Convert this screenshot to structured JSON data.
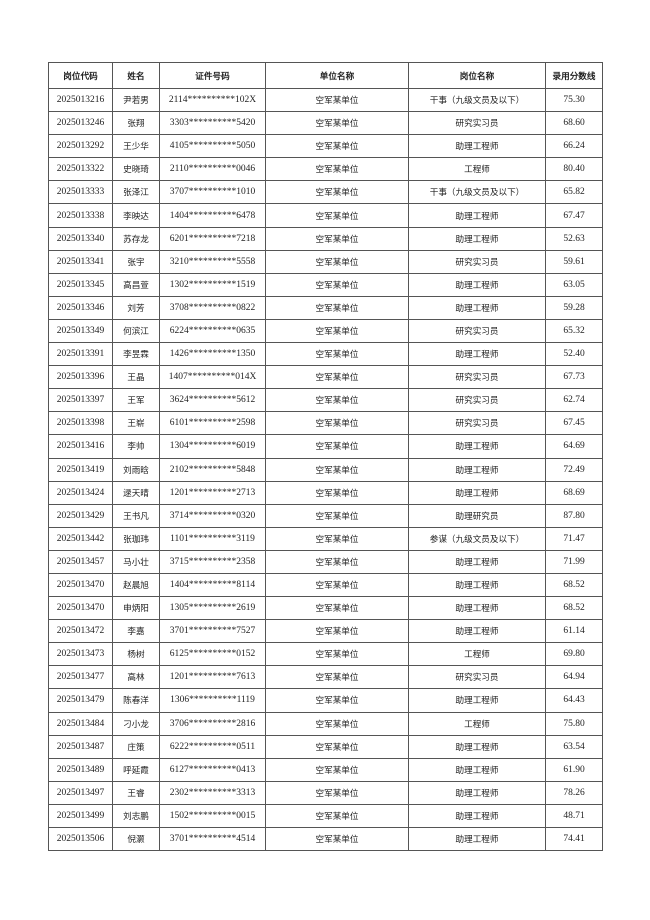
{
  "table": {
    "headers": [
      "岗位代码",
      "姓名",
      "证件号码",
      "单位名称",
      "岗位名称",
      "录用分数线"
    ],
    "rows": [
      [
        "2025013216",
        "尹若男",
        "2114**********102X",
        "空军某单位",
        "干事（九级文员及以下）",
        "75.30"
      ],
      [
        "2025013246",
        "张翔",
        "3303**********5420",
        "空军某单位",
        "研究实习员",
        "68.60"
      ],
      [
        "2025013292",
        "王少华",
        "4105**********5050",
        "空军某单位",
        "助理工程师",
        "66.24"
      ],
      [
        "2025013322",
        "史晓琦",
        "2110**********0046",
        "空军某单位",
        "工程师",
        "80.40"
      ],
      [
        "2025013333",
        "张泽江",
        "3707**********1010",
        "空军某单位",
        "干事（九级文员及以下）",
        "65.82"
      ],
      [
        "2025013338",
        "李映达",
        "1404**********6478",
        "空军某单位",
        "助理工程师",
        "67.47"
      ],
      [
        "2025013340",
        "苏存龙",
        "6201**********7218",
        "空军某单位",
        "助理工程师",
        "52.63"
      ],
      [
        "2025013341",
        "张宇",
        "3210**********5558",
        "空军某单位",
        "研究实习员",
        "59.61"
      ],
      [
        "2025013345",
        "高昌萱",
        "1302**********1519",
        "空军某单位",
        "助理工程师",
        "63.05"
      ],
      [
        "2025013346",
        "刘芳",
        "3708**********0822",
        "空军某单位",
        "助理工程师",
        "59.28"
      ],
      [
        "2025013349",
        "何滨江",
        "6224**********0635",
        "空军某单位",
        "研究实习员",
        "65.32"
      ],
      [
        "2025013391",
        "李昱霖",
        "1426**********1350",
        "空军某单位",
        "助理工程师",
        "52.40"
      ],
      [
        "2025013396",
        "王晶",
        "1407**********014X",
        "空军某单位",
        "研究实习员",
        "67.73"
      ],
      [
        "2025013397",
        "王军",
        "3624**********5612",
        "空军某单位",
        "研究实习员",
        "62.74"
      ],
      [
        "2025013398",
        "王崭",
        "6101**********2598",
        "空军某单位",
        "研究实习员",
        "67.45"
      ],
      [
        "2025013416",
        "李帅",
        "1304**********6019",
        "空军某单位",
        "助理工程师",
        "64.69"
      ],
      [
        "2025013419",
        "刘雨晗",
        "2102**********5848",
        "空军某单位",
        "助理工程师",
        "72.49"
      ],
      [
        "2025013424",
        "逯天晴",
        "1201**********2713",
        "空军某单位",
        "助理工程师",
        "68.69"
      ],
      [
        "2025013429",
        "王书凡",
        "3714**********0320",
        "空军某单位",
        "助理研究员",
        "87.80"
      ],
      [
        "2025013442",
        "张珈玮",
        "1101**********3119",
        "空军某单位",
        "参谋（九级文员及以下）",
        "71.47"
      ],
      [
        "2025013457",
        "马小壮",
        "3715**********2358",
        "空军某单位",
        "助理工程师",
        "71.99"
      ],
      [
        "2025013470",
        "赵晨旭",
        "1404**********8114",
        "空军某单位",
        "助理工程师",
        "68.52"
      ],
      [
        "2025013470",
        "申炳阳",
        "1305**********2619",
        "空军某单位",
        "助理工程师",
        "68.52"
      ],
      [
        "2025013472",
        "李嘉",
        "3701**********7527",
        "空军某单位",
        "助理工程师",
        "61.14"
      ],
      [
        "2025013473",
        "杨树",
        "6125**********0152",
        "空军某单位",
        "工程师",
        "69.80"
      ],
      [
        "2025013477",
        "高林",
        "1201**********7613",
        "空军某单位",
        "研究实习员",
        "64.94"
      ],
      [
        "2025013479",
        "陈春洋",
        "1306**********1119",
        "空军某单位",
        "助理工程师",
        "64.43"
      ],
      [
        "2025013484",
        "刁小龙",
        "3706**********2816",
        "空军某单位",
        "工程师",
        "75.80"
      ],
      [
        "2025013487",
        "庄策",
        "6222**********0511",
        "空军某单位",
        "助理工程师",
        "63.54"
      ],
      [
        "2025013489",
        "呼延霞",
        "6127**********0413",
        "空军某单位",
        "助理工程师",
        "61.90"
      ],
      [
        "2025013497",
        "王睿",
        "2302**********3313",
        "空军某单位",
        "助理工程师",
        "78.26"
      ],
      [
        "2025013499",
        "刘志鹏",
        "1502**********0015",
        "空军某单位",
        "助理工程师",
        "48.71"
      ],
      [
        "2025013506",
        "倪灏",
        "3701**********4514",
        "空军某单位",
        "助理工程师",
        "74.41"
      ]
    ]
  }
}
